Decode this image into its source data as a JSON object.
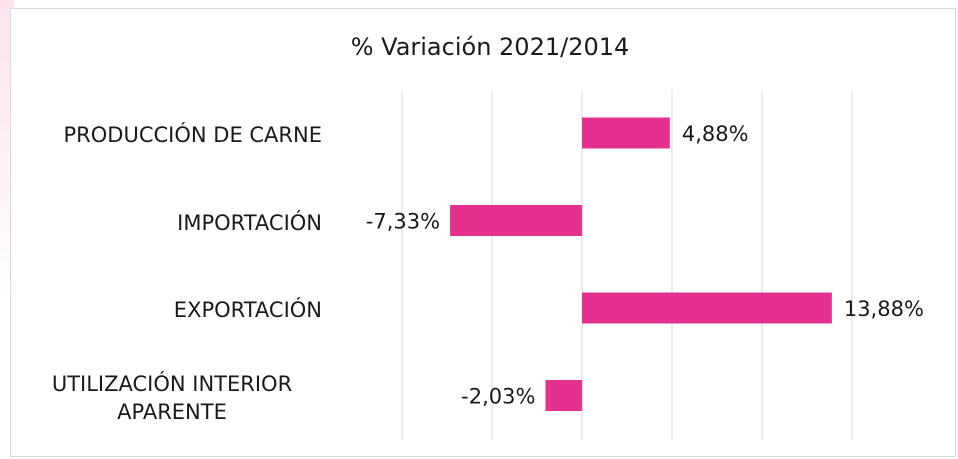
{
  "chart_data": {
    "type": "bar",
    "orientation": "horizontal",
    "title": "% Variación 2021/2014",
    "categories": [
      "PRODUCCIÓN DE CARNE",
      "IMPORTACIÓN",
      "EXPORTACIÓN",
      "UTILIZACIÓN INTERIOR APARENTE"
    ],
    "values": [
      4.88,
      -7.33,
      13.88,
      -2.03
    ],
    "value_labels": [
      "4,88%",
      "-7,33%",
      "13,88%",
      "-2,03%"
    ],
    "color": "#e5318e",
    "xlim": [
      -10,
      15
    ],
    "xticks": [
      -10,
      -5,
      0,
      5,
      10,
      15
    ],
    "grid": true
  }
}
